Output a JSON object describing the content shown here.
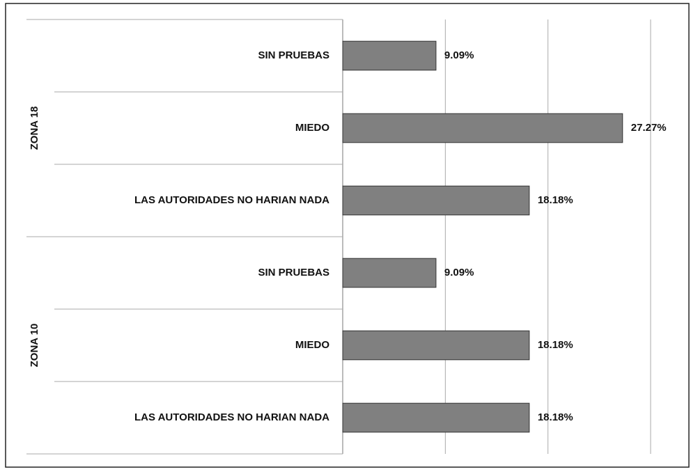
{
  "chart_data": {
    "type": "bar",
    "orientation": "horizontal",
    "color": "#808080",
    "groups": [
      {
        "label": "ZONA 18",
        "categories": [
          "SIN PRUEBAS",
          "MIEDO",
          "LAS AUTORIDADES NO HARIAN NADA"
        ],
        "values": [
          9.09,
          27.27,
          18.18
        ],
        "value_labels": [
          "9.09%",
          "27.27%",
          "18.18%"
        ]
      },
      {
        "label": "ZONA 10",
        "categories": [
          "SIN PRUEBAS",
          "MIEDO",
          "LAS AUTORIDADES NO HARIAN NADA"
        ],
        "values": [
          9.09,
          18.18,
          18.18
        ],
        "value_labels": [
          "9.09%",
          "18.18%",
          "18.18%"
        ]
      }
    ],
    "xlim": [
      0,
      30
    ],
    "xticks": [
      0,
      10,
      20,
      30
    ],
    "grid": true
  }
}
